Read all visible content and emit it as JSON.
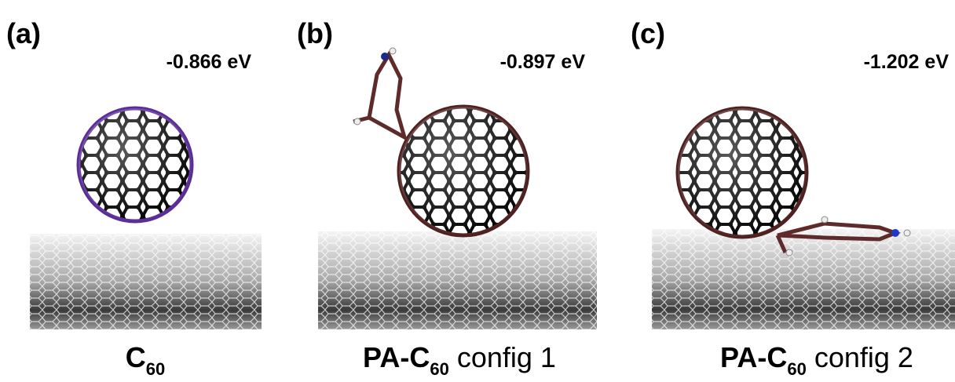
{
  "panels": [
    {
      "label": "(a)",
      "energy": "-0.866 eV",
      "caption": {
        "main": "C",
        "sub": "60"
      }
    },
    {
      "label": "(b)",
      "energy": "-0.897 eV",
      "caption": {
        "main": "PA-C",
        "sub": "60",
        "rest": " config 1"
      }
    },
    {
      "label": "(c)",
      "energy": "-1.202 eV",
      "caption": {
        "main": "PA-C",
        "sub": "60",
        "rest": " config 2"
      }
    }
  ]
}
